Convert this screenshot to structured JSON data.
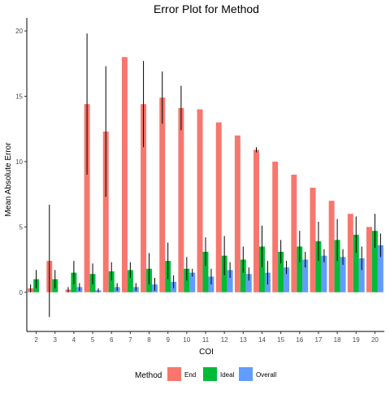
{
  "chart_data": {
    "type": "bar",
    "title": "Error Plot for Method",
    "xlabel": "COI",
    "ylabel": "Mean Absolute Error",
    "categories": [
      "2",
      "3",
      "4",
      "5",
      "6",
      "7",
      "8",
      "9",
      "10",
      "11",
      "12",
      "13",
      "14",
      "15",
      "16",
      "17",
      "18",
      "19",
      "20"
    ],
    "ylim": [
      -3,
      21
    ],
    "yticks": [
      0,
      5,
      10,
      15,
      20
    ],
    "grid": false,
    "legend": {
      "title": "Method",
      "position": "bottom"
    },
    "series": [
      {
        "name": "End",
        "color": "#F8766D",
        "values": [
          0.3,
          2.4,
          0.2,
          14.4,
          12.3,
          18.0,
          14.4,
          14.9,
          14.1,
          14.0,
          13.0,
          12.0,
          10.9,
          10.0,
          9.0,
          8.0,
          7.0,
          6.0,
          5.0
        ],
        "errors": [
          0.3,
          4.3,
          0.2,
          5.4,
          5.0,
          0,
          3.3,
          2.0,
          1.7,
          0,
          0,
          0,
          0.2,
          0,
          0,
          0,
          0,
          0,
          0
        ]
      },
      {
        "name": "Ideal",
        "color": "#00BA38",
        "values": [
          1.0,
          1.0,
          1.5,
          1.4,
          1.6,
          1.7,
          1.8,
          2.4,
          1.8,
          3.1,
          2.8,
          2.5,
          3.5,
          3.1,
          3.5,
          3.9,
          4.0,
          4.4,
          4.7
        ],
        "errors": [
          0.7,
          0.7,
          0.9,
          0.8,
          0.7,
          0.6,
          1.2,
          1.4,
          0.9,
          1.1,
          1.5,
          1.0,
          1.6,
          0.9,
          1.2,
          1.5,
          1.6,
          1.4,
          1.3
        ]
      },
      {
        "name": "Overall",
        "color": "#619CFF",
        "values": [
          0,
          0,
          0.4,
          0.15,
          0.4,
          0.4,
          0.6,
          0.8,
          1.5,
          1.2,
          1.7,
          1.4,
          1.5,
          1.9,
          2.5,
          2.8,
          2.7,
          2.6,
          3.6
        ],
        "errors": [
          0,
          0,
          0.3,
          0.15,
          0.3,
          0.3,
          0.5,
          0.5,
          0.3,
          0.6,
          0.6,
          0.5,
          0.9,
          0.5,
          0.6,
          0.5,
          0.6,
          0.9,
          0.9
        ]
      }
    ]
  }
}
